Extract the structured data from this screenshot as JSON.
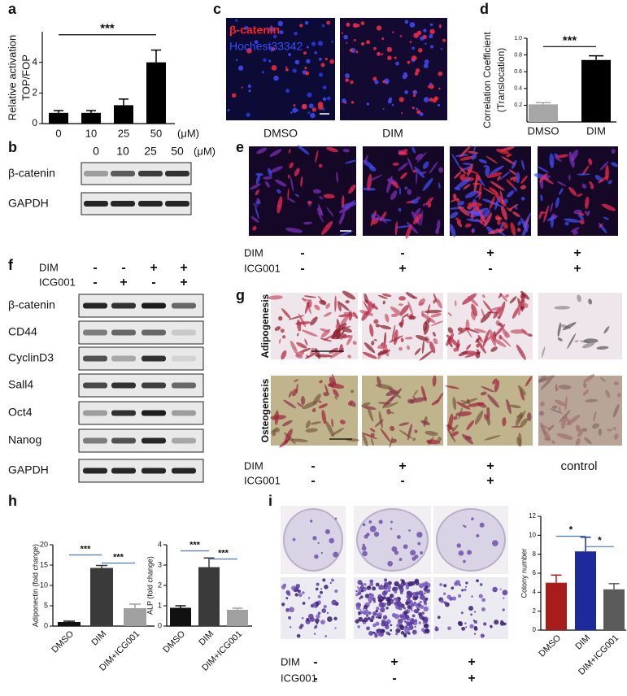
{
  "panel_labels": [
    "a",
    "b",
    "c",
    "d",
    "e",
    "f",
    "g",
    "h",
    "i"
  ],
  "chart_data": [
    {
      "type": "bar",
      "ylabel": [
        "Relative activation",
        "TOP/FOP"
      ],
      "categories": [
        "0",
        "10",
        "25",
        "50"
      ],
      "unit": "(μM)",
      "values": [
        0.7,
        0.7,
        1.2,
        4.0
      ],
      "errors": [
        0.15,
        0.15,
        0.4,
        0.8
      ],
      "colors": [
        "#000000",
        "#000000",
        "#000000",
        "#000000"
      ],
      "ylim": [
        0,
        6
      ],
      "yticks": [
        0,
        2,
        4
      ],
      "annotations": [
        "***"
      ]
    },
    {
      "type": "bar",
      "ylabel": [
        "Correlation Coefficient",
        "(Translocation)"
      ],
      "categories": [
        "DMSO",
        "DIM"
      ],
      "values": [
        0.21,
        0.74
      ],
      "errors": [
        0.02,
        0.05
      ],
      "colors": [
        "#a6a6a6",
        "#000000"
      ],
      "ylim": [
        0,
        1
      ],
      "yticks": [
        0.2,
        0.4,
        0.6,
        0.8,
        {
          "value": 1,
          "label": "1.0"
        }
      ],
      "annotations": [
        "***"
      ]
    },
    {
      "type": "bar",
      "ylabel": [
        "Adiponectin (fold change)"
      ],
      "categories": [
        "DMSO",
        "DIM",
        "DIM+ICG001"
      ],
      "values": [
        1.0,
        14.3,
        4.4
      ],
      "errors": [
        0.2,
        0.6,
        1.0
      ],
      "colors": [
        "#111111",
        "#3a3a3a",
        "#a0a0a0"
      ],
      "ylim": [
        0,
        20
      ],
      "yticks": [
        0,
        5,
        10,
        15,
        20
      ],
      "annotations": [
        "***",
        "***"
      ]
    },
    {
      "type": "bar",
      "ylabel": [
        "ALP (fold change)"
      ],
      "categories": [
        "DMSO",
        "DIM",
        "DIM+ICG001"
      ],
      "values": [
        0.9,
        2.9,
        0.8
      ],
      "errors": [
        0.1,
        0.45,
        0.08
      ],
      "colors": [
        "#111111",
        "#3a3a3a",
        "#a0a0a0"
      ],
      "ylim": [
        0,
        4
      ],
      "yticks": [
        0,
        1,
        2,
        3,
        4
      ],
      "annotations": [
        "***",
        "***"
      ]
    },
    {
      "type": "bar",
      "ylabel": [
        "Colony number"
      ],
      "categories": [
        "DMSO",
        "DIM",
        "DIM+ICG001"
      ],
      "values": [
        5.0,
        8.3,
        4.3
      ],
      "errors": [
        0.8,
        1.5,
        0.6
      ],
      "colors": [
        "#a81c1c",
        "#1c2a9c",
        "#5a5a5a"
      ],
      "ylim": [
        0,
        12
      ],
      "yticks": [
        0,
        2,
        4,
        6,
        8,
        10,
        12
      ],
      "annotations": [
        "*",
        "*"
      ]
    }
  ],
  "b": {
    "doses": [
      "0",
      "10",
      "25",
      "50"
    ],
    "unit": "(μM)",
    "blots": [
      "β-catenin",
      "GAPDH"
    ]
  },
  "c": {
    "stains": [
      "β-catenin",
      "Hochest33342"
    ],
    "conditions": [
      "DMSO",
      "DIM"
    ]
  },
  "e": {
    "treatments": [
      {
        "name": "DIM",
        "signs": [
          "-",
          "-",
          "+",
          "+"
        ]
      },
      {
        "name": "ICG001",
        "signs": [
          "-",
          "+",
          "-",
          "+"
        ]
      }
    ]
  },
  "f": {
    "treatments": [
      {
        "name": "DIM",
        "signs": [
          "-",
          "-",
          "+",
          "+"
        ]
      },
      {
        "name": "ICG001",
        "signs": [
          "-",
          "+",
          "-",
          "+"
        ]
      }
    ],
    "blots": [
      "β-catenin",
      "CD44",
      "CyclinD3",
      "Sall4",
      "Oct4",
      "Nanog",
      "GAPDH"
    ]
  },
  "g": {
    "rows": [
      "Adipogenesis",
      "Osteogenesis"
    ],
    "treatments": [
      {
        "name": "DIM",
        "signs": [
          "-",
          "+",
          "+"
        ]
      },
      {
        "name": "ICG001",
        "signs": [
          "-",
          "-",
          "+"
        ]
      }
    ],
    "control": "control"
  },
  "i": {
    "treatments": [
      {
        "name": "DIM",
        "signs": [
          "-",
          "+",
          "+"
        ]
      },
      {
        "name": "ICG001",
        "signs": [
          "-",
          "-",
          "+"
        ]
      }
    ]
  }
}
